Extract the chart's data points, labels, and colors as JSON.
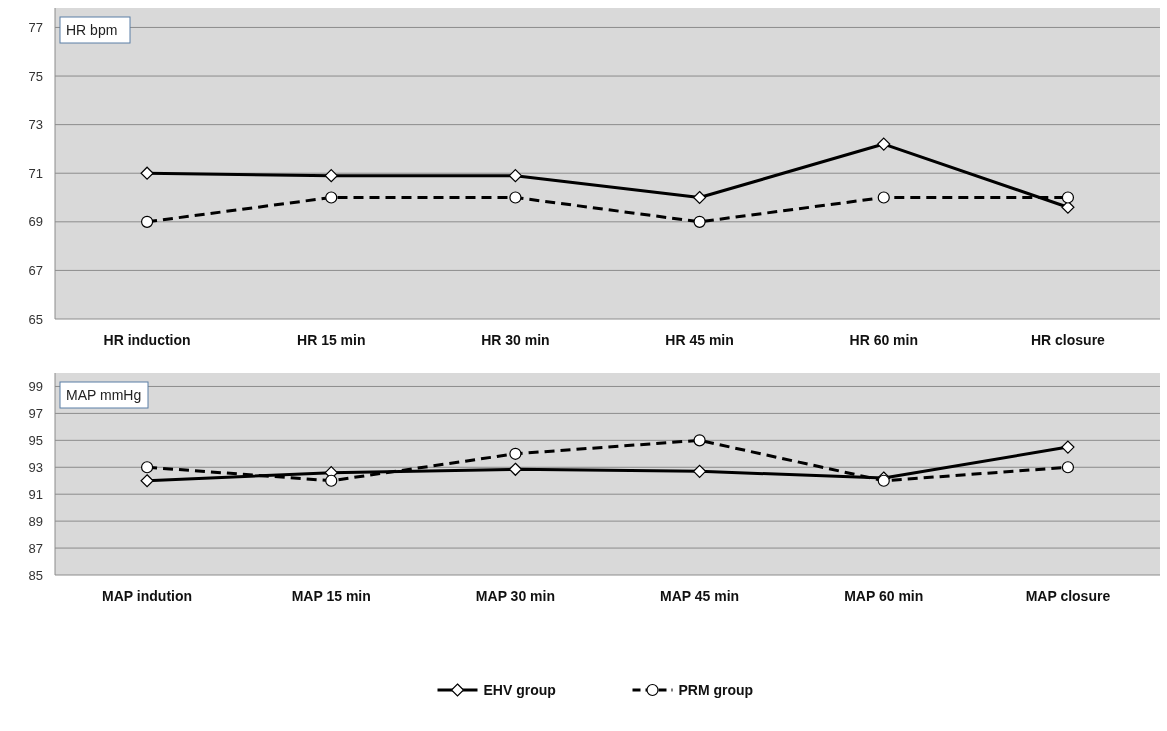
{
  "chart_data": [
    {
      "type": "line",
      "ylabel": "HR bpm",
      "categories": [
        "HR induction",
        "HR 15 min",
        "HR 30 min",
        "HR 45 min",
        "HR 60 min",
        "HR closure"
      ],
      "ylim": [
        65,
        77.8
      ],
      "yticks": [
        65,
        67,
        69,
        71,
        73,
        75,
        77
      ],
      "grid": "y",
      "legend": false,
      "series": [
        {
          "color": "#000000",
          "marker": "diamond",
          "line_style": "solid",
          "values": [
            71,
            70.9,
            70.9,
            70,
            72.2,
            69.6
          ]
        },
        {
          "color": "#000000",
          "marker": "circle",
          "line_style": "dashed",
          "values": [
            69,
            70,
            70,
            69,
            70,
            70
          ]
        }
      ]
    },
    {
      "type": "line",
      "ylabel": "MAP mmHg",
      "categories": [
        "MAP indution",
        "MAP 15 min",
        "MAP 30 min",
        "MAP 45 min",
        "MAP 60 min",
        "MAP closure"
      ],
      "ylim": [
        85,
        100
      ],
      "yticks": [
        85,
        87,
        89,
        91,
        93,
        95,
        97,
        99
      ],
      "grid": "y",
      "legend": "bottom",
      "series": [
        {
          "name": "EHV group",
          "color": "#000000",
          "marker": "diamond",
          "line_style": "solid",
          "values": [
            92,
            92.6,
            92.85,
            92.7,
            92.2,
            94.5
          ]
        },
        {
          "name": "PRM group",
          "color": "#000000",
          "marker": "circle",
          "line_style": "dashed",
          "values": [
            93,
            92,
            94,
            95,
            92,
            93
          ]
        }
      ]
    }
  ]
}
